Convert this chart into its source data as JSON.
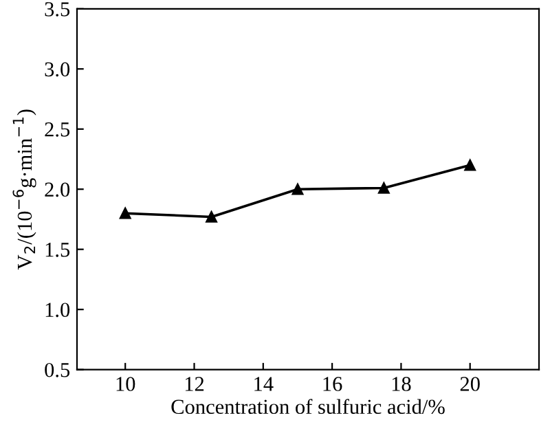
{
  "chart_data": {
    "type": "line",
    "xlabel": "Concentration of sulfuric acid/%",
    "ylabel": "V$_{2}$/(10$^{−6}$g·min$^{−1}$)",
    "x": [
      10,
      12.5,
      15,
      17.5,
      20
    ],
    "series": [
      {
        "color": "#000000",
        "values": [
          1.8,
          1.77,
          2.0,
          2.01,
          2.2
        ]
      }
    ],
    "xlim": [
      8.6,
      22
    ],
    "xticks": [
      10,
      12,
      14,
      16,
      18,
      20
    ],
    "ylim": [
      0.5,
      3.5
    ],
    "yticks": [
      0.5,
      {
        "value": 1,
        "label": "1.0"
      },
      1.5,
      {
        "value": 2,
        "label": "2.0"
      },
      2.5,
      {
        "value": 3,
        "label": "3.0"
      },
      3.5
    ],
    "marker": "triangle",
    "line_style": "solid",
    "grid": false,
    "legend": false
  }
}
